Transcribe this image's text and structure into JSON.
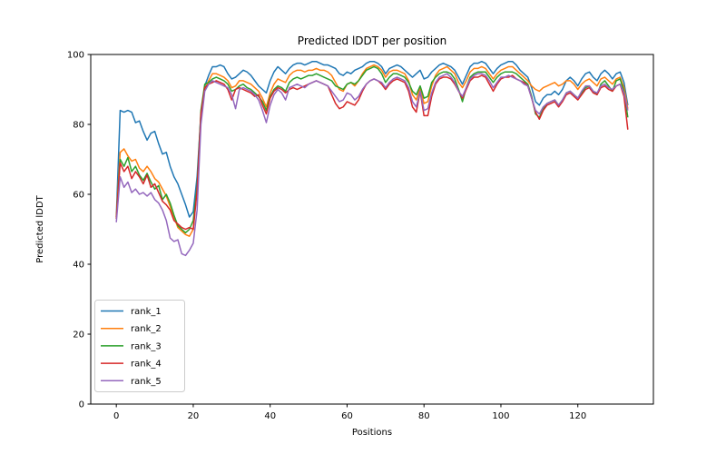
{
  "chart_data": {
    "type": "line",
    "title": "Predicted lDDT per position",
    "xlabel": "Positions",
    "ylabel": "Predicted lDDT",
    "xlim": [
      -6.65,
      139.65
    ],
    "ylim": [
      0,
      100
    ],
    "x_ticks": [
      0,
      20,
      40,
      60,
      80,
      100,
      120
    ],
    "y_ticks": [
      0,
      20,
      40,
      60,
      80,
      100
    ],
    "grid": false,
    "legend_position": "lower left",
    "positions_range": [
      0,
      133
    ],
    "series": [
      {
        "name": "rank_1",
        "color": "#1f77b4",
        "values": [
          53.5,
          84,
          83.5,
          84,
          83.5,
          80.5,
          81,
          78,
          75.5,
          77.5,
          78,
          74.5,
          71.5,
          72,
          68,
          65,
          63,
          60,
          57,
          53.5,
          55,
          65,
          83,
          91,
          94,
          96.5,
          96.5,
          97,
          96.5,
          94.5,
          93,
          93.5,
          94.5,
          95.5,
          95,
          94,
          92.5,
          91,
          90,
          89,
          92.5,
          95,
          96.5,
          95.5,
          94.5,
          96,
          97,
          97.5,
          97.5,
          97,
          97.5,
          98,
          98,
          97.5,
          97,
          97,
          96.5,
          96,
          94.5,
          94,
          95,
          94.5,
          95.5,
          96,
          96.5,
          97.5,
          98,
          98,
          97.5,
          96.5,
          94.5,
          96,
          96.5,
          97,
          96.5,
          95.5,
          94.5,
          93.5,
          94.5,
          95.5,
          93,
          93.5,
          95,
          96,
          97,
          97.5,
          97,
          96.5,
          95.5,
          93.5,
          91.5,
          94,
          96.5,
          97.5,
          97.5,
          98,
          97.5,
          96,
          94.5,
          96,
          97,
          97.5,
          98,
          98,
          97,
          95.5,
          94.5,
          93.5,
          90.5,
          86.5,
          85.5,
          87.5,
          88.5,
          88.5,
          89.5,
          88.5,
          90,
          92.5,
          93.5,
          92.5,
          91,
          93,
          94.5,
          95,
          93.5,
          92.5,
          94.5,
          95.5,
          94.5,
          93,
          94.5,
          95,
          92,
          85.5
        ]
      },
      {
        "name": "rank_2",
        "color": "#ff7f0e",
        "values": [
          53.5,
          72,
          73,
          71,
          69.5,
          70,
          67.5,
          66.5,
          68,
          66.5,
          64.5,
          63.5,
          61.5,
          59.5,
          56.5,
          53.5,
          50.5,
          49.5,
          48.5,
          48,
          50,
          62,
          82,
          90,
          92.5,
          94.5,
          94.5,
          94,
          93.5,
          92.5,
          90.5,
          91,
          92.5,
          92.5,
          92,
          91.5,
          90.5,
          89.5,
          87.5,
          85,
          89,
          91.5,
          93,
          92.5,
          92,
          94,
          95,
          95.5,
          95.5,
          95,
          95.5,
          95.5,
          96,
          95.5,
          95.5,
          95,
          94,
          92,
          90,
          89.5,
          91.5,
          92,
          91,
          92.5,
          94.5,
          96,
          96.5,
          97,
          96.5,
          95.5,
          93.5,
          95,
          95.5,
          95.5,
          95,
          94.5,
          92.5,
          88.5,
          87,
          90.5,
          86,
          86.5,
          91,
          94,
          95.5,
          96,
          96.5,
          95.5,
          94.5,
          92,
          90.5,
          92.5,
          95,
          96,
          96,
          96.5,
          96,
          94.5,
          93,
          94.5,
          95.5,
          96,
          96.5,
          96.5,
          95.5,
          94.5,
          93.5,
          92.5,
          91,
          90,
          89.5,
          90.5,
          91,
          91.5,
          92,
          91,
          91.5,
          92.5,
          92.5,
          91.5,
          90,
          91.5,
          92.5,
          93,
          92,
          91,
          93,
          93.5,
          92.5,
          91.5,
          93,
          93.5,
          90.5,
          84.5
        ]
      },
      {
        "name": "rank_3",
        "color": "#2ca02c",
        "values": [
          53,
          70,
          68,
          70.5,
          66.5,
          68,
          65.5,
          64,
          66,
          63.5,
          61.5,
          62.5,
          58.5,
          60,
          57.5,
          54,
          51,
          50,
          49,
          50,
          52.5,
          62,
          84,
          91.5,
          92,
          93,
          93.5,
          93,
          92.5,
          91.5,
          89.5,
          90,
          91,
          91.5,
          90.5,
          90,
          89,
          88,
          86.5,
          84,
          88,
          90,
          91,
          90.5,
          89.5,
          92,
          93,
          93.5,
          93,
          93.5,
          94,
          94,
          94.5,
          94,
          93.5,
          93,
          92.5,
          91,
          90.5,
          90,
          91.5,
          92,
          91.5,
          92.5,
          94,
          95.5,
          96,
          96.5,
          96,
          94.5,
          92,
          93.5,
          94.5,
          94.5,
          94,
          93.5,
          92,
          89.5,
          88.5,
          91,
          87.5,
          88,
          92,
          93.5,
          94.5,
          95,
          95,
          94.5,
          93,
          90,
          86.5,
          90.5,
          93.5,
          94.5,
          95,
          95,
          95,
          93.5,
          92,
          93.5,
          94.5,
          95,
          95,
          95,
          94.5,
          93.5,
          92.5,
          91.5,
          88,
          83,
          82,
          84.5,
          86,
          86.5,
          87,
          85.5,
          87,
          89,
          89.5,
          88.5,
          87.5,
          89,
          90.5,
          91,
          89.5,
          88.5,
          91.5,
          92.5,
          91,
          89.5,
          92.5,
          93,
          89.5,
          82
        ]
      },
      {
        "name": "rank_4",
        "color": "#d62728",
        "values": [
          53,
          69,
          66.5,
          68,
          64.5,
          66.5,
          65,
          63,
          65.5,
          62,
          63,
          60.5,
          58,
          57,
          55.5,
          52.5,
          51.5,
          50.5,
          50,
          50.5,
          50,
          61,
          83,
          90.5,
          91.5,
          92,
          92.5,
          92,
          91.5,
          90,
          87,
          90,
          90.5,
          90,
          89.5,
          89,
          88,
          88.5,
          85.5,
          83,
          87.5,
          89.5,
          90.5,
          90,
          89,
          90,
          90.5,
          90,
          90.5,
          91,
          91.5,
          92,
          92.5,
          92,
          91.5,
          91,
          88.5,
          86,
          84.5,
          85,
          86.5,
          86,
          85.5,
          87,
          89.5,
          91.5,
          92.5,
          93,
          92.5,
          91.5,
          90,
          91.5,
          92.5,
          93,
          92.5,
          92,
          89.5,
          85,
          83.5,
          89.5,
          82.5,
          82.5,
          88,
          91.5,
          93,
          93.5,
          93.5,
          93,
          91.5,
          89.5,
          87.5,
          90,
          92.5,
          93.5,
          93.5,
          94,
          93.5,
          91.5,
          89.5,
          91.5,
          93,
          93.5,
          93.5,
          94,
          93,
          92.5,
          92,
          91,
          87.5,
          83.5,
          81.5,
          84,
          85.5,
          86,
          86.5,
          85,
          86.5,
          88.5,
          89,
          88,
          87,
          88.5,
          90,
          90.5,
          89,
          88.5,
          90.5,
          91,
          90,
          89.5,
          91,
          91.5,
          88,
          78.5
        ]
      },
      {
        "name": "rank_5",
        "color": "#9467bd",
        "values": [
          52,
          65,
          62,
          63.5,
          60.5,
          61.5,
          60,
          60.5,
          59.5,
          60.5,
          58.5,
          57.5,
          55.5,
          52.5,
          47.5,
          46.5,
          47,
          43,
          42.5,
          44,
          46,
          55.5,
          80,
          89.5,
          91.5,
          92.5,
          92,
          91.5,
          91,
          90.5,
          88.5,
          84.5,
          90,
          90.5,
          90,
          89.5,
          88.5,
          87,
          84,
          80.5,
          85.5,
          88.5,
          90,
          89,
          87,
          90.5,
          91,
          91.5,
          91,
          90.5,
          91.5,
          92,
          92.5,
          92,
          91.5,
          91,
          89.5,
          88,
          86.5,
          87,
          89,
          88.5,
          87,
          88,
          90,
          91.5,
          92.5,
          93,
          92.5,
          92,
          90.5,
          92,
          93,
          93.5,
          93,
          92.5,
          90.5,
          86.5,
          85,
          89.5,
          84,
          84.5,
          89,
          92,
          93.5,
          94,
          94.5,
          93.5,
          92,
          89.5,
          88,
          90.5,
          93,
          94,
          94.5,
          94.5,
          94,
          92.5,
          90.5,
          92,
          93.5,
          93.5,
          94,
          93.5,
          93,
          92.5,
          91.5,
          91,
          87.5,
          84,
          83,
          85,
          86,
          86.5,
          87,
          85.5,
          87,
          89,
          89.5,
          88.5,
          87.5,
          89.5,
          91,
          91,
          89.5,
          89,
          91,
          91.5,
          90.5,
          90,
          91,
          91.5,
          89,
          84
        ]
      }
    ]
  }
}
